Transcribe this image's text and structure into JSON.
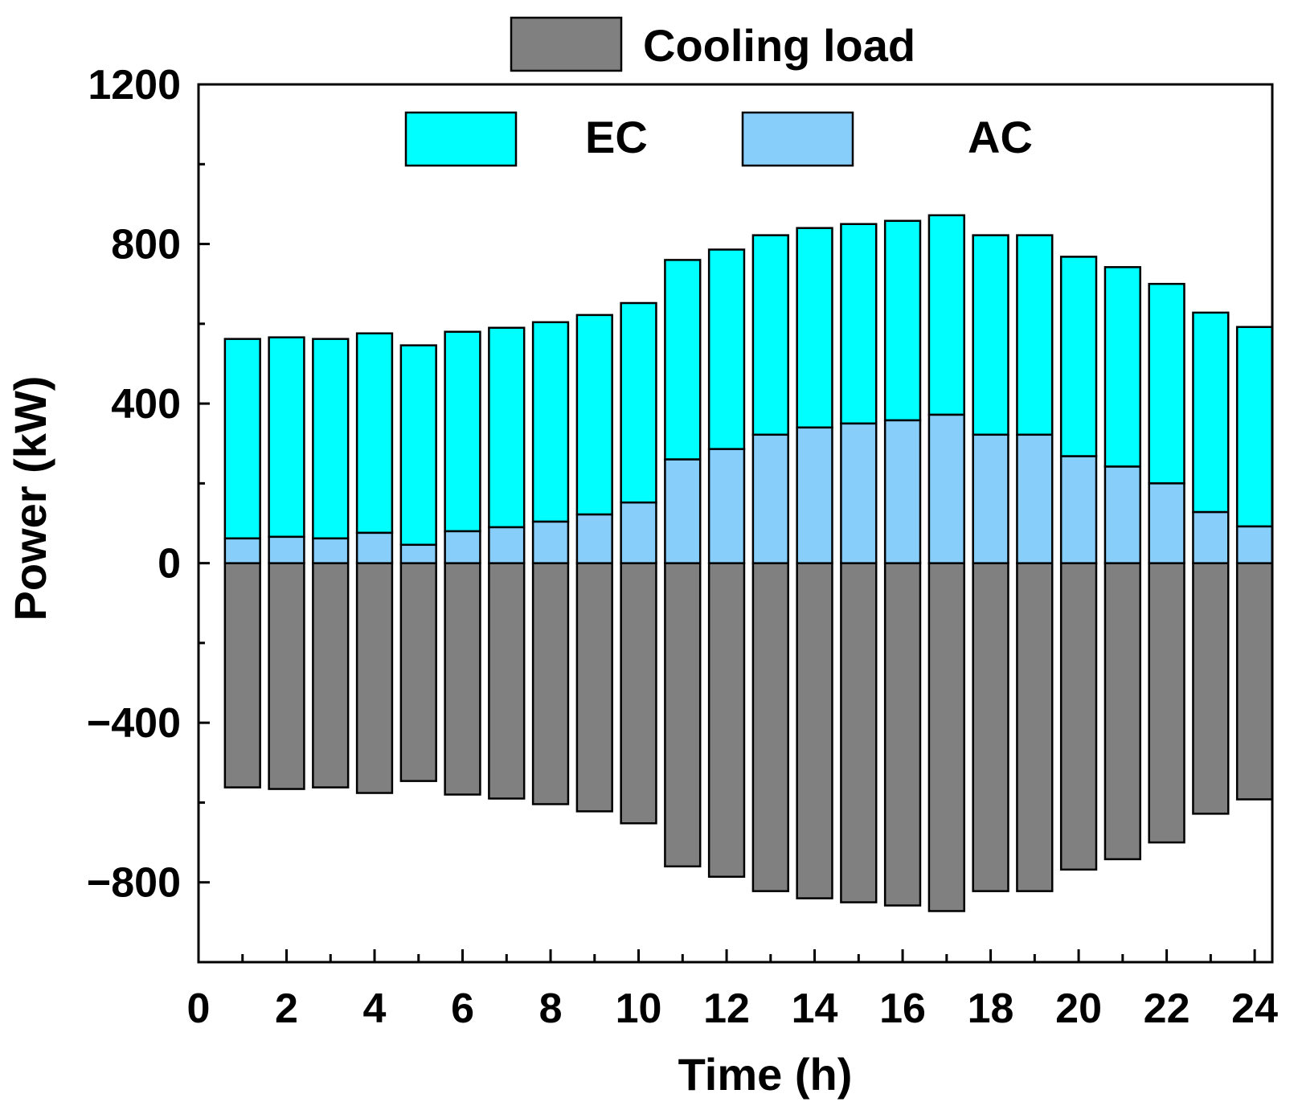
{
  "chart_data": {
    "type": "bar",
    "stacked": true,
    "title": "",
    "xlabel": "Time (h)",
    "ylabel": "Power (kW)",
    "xlim": [
      0,
      24.4
    ],
    "ylim": [
      -1000,
      1200
    ],
    "x_ticks": [
      0,
      2,
      4,
      6,
      8,
      10,
      12,
      14,
      16,
      18,
      20,
      22,
      24
    ],
    "x_tick_labels": [
      "0",
      "2",
      "4",
      "6",
      "8",
      "10",
      "12",
      "14",
      "16",
      "18",
      "20",
      "22",
      "24"
    ],
    "y_ticks": [
      -800,
      -400,
      0,
      400,
      800,
      1200
    ],
    "y_tick_labels": [
      "−800",
      "−400",
      "0",
      "400",
      "800",
      "1200"
    ],
    "categories": [
      1,
      2,
      3,
      4,
      5,
      6,
      7,
      8,
      9,
      10,
      11,
      12,
      13,
      14,
      15,
      16,
      17,
      18,
      19,
      20,
      21,
      22,
      23,
      24
    ],
    "series": [
      {
        "name": "AC",
        "color": "#87CEFA",
        "values": [
          62,
          66,
          62,
          76,
          46,
          80,
          90,
          104,
          122,
          152,
          260,
          286,
          322,
          340,
          350,
          358,
          372,
          322,
          322,
          268,
          242,
          200,
          128,
          92
        ]
      },
      {
        "name": "EC",
        "color": "#00FFFF",
        "values": [
          500,
          500,
          500,
          500,
          500,
          500,
          500,
          500,
          500,
          500,
          500,
          500,
          500,
          500,
          500,
          500,
          500,
          500,
          500,
          500,
          500,
          500,
          500,
          500
        ]
      },
      {
        "name": "Cooling load",
        "color": "#808080",
        "values": [
          -562,
          -566,
          -562,
          -576,
          -546,
          -580,
          -590,
          -604,
          -622,
          -652,
          -760,
          -786,
          -822,
          -840,
          -850,
          -858,
          -872,
          -822,
          -822,
          -768,
          -742,
          -700,
          -628,
          -592
        ]
      }
    ],
    "legend": {
      "placement": "top",
      "entries": [
        {
          "label": "Cooling load",
          "color": "#808080"
        },
        {
          "label": "EC",
          "color": "#00FFFF"
        },
        {
          "label": "AC",
          "color": "#87CEFA"
        }
      ]
    }
  }
}
